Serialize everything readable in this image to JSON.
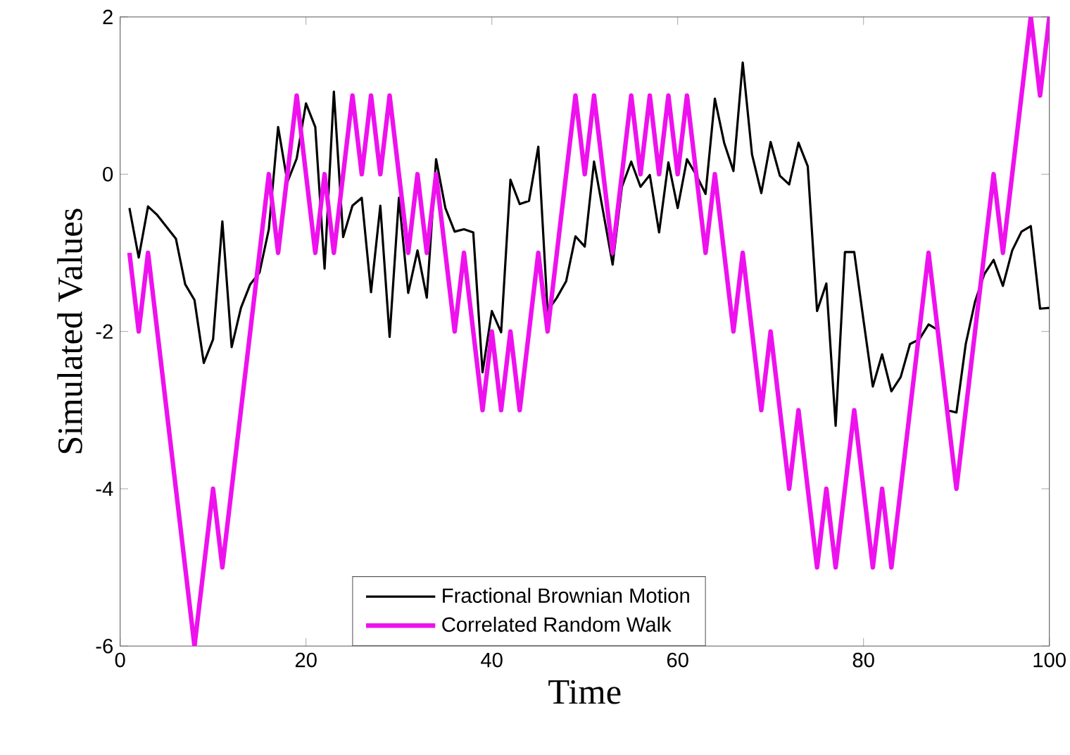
{
  "chart_data": {
    "type": "line",
    "xlabel": "Time",
    "ylabel": "Simulated Values",
    "x": [
      1,
      2,
      3,
      4,
      5,
      6,
      7,
      8,
      9,
      10,
      11,
      12,
      13,
      14,
      15,
      16,
      17,
      18,
      19,
      20,
      21,
      22,
      23,
      24,
      25,
      26,
      27,
      28,
      29,
      30,
      31,
      32,
      33,
      34,
      35,
      36,
      37,
      38,
      39,
      40,
      41,
      42,
      43,
      44,
      45,
      46,
      47,
      48,
      49,
      50,
      51,
      52,
      53,
      54,
      55,
      56,
      57,
      58,
      59,
      60,
      61,
      62,
      63,
      64,
      65,
      66,
      67,
      68,
      69,
      70,
      71,
      72,
      73,
      74,
      75,
      76,
      77,
      78,
      79,
      80,
      81,
      82,
      83,
      84,
      85,
      86,
      87,
      88,
      89,
      90,
      91,
      92,
      93,
      94,
      95,
      96,
      97,
      98,
      99,
      100
    ],
    "series": [
      {
        "name": "Fractional Brownian Motion",
        "color": "#000000",
        "values": [
          -0.43,
          -1.06,
          -0.41,
          -0.52,
          -0.67,
          -0.82,
          -1.4,
          -1.6,
          -2.4,
          -2.1,
          -0.6,
          -2.2,
          -1.7,
          -1.4,
          -1.25,
          -0.7,
          0.6,
          -0.1,
          0.2,
          0.9,
          0.6,
          -1.2,
          1.05,
          -0.8,
          -0.4,
          -0.3,
          -1.5,
          -0.4,
          -2.07,
          -0.3,
          -1.51,
          -0.97,
          -1.57,
          0.19,
          -0.43,
          -0.73,
          -0.7,
          -0.74,
          -2.52,
          -1.74,
          -2.01,
          -0.07,
          -0.38,
          -0.34,
          0.35,
          -1.74,
          -1.57,
          -1.36,
          -0.79,
          -0.92,
          0.16,
          -0.49,
          -1.15,
          -0.16,
          0.16,
          -0.16,
          -0.01,
          -0.74,
          0.15,
          -0.43,
          0.19,
          -0.01,
          -0.25,
          0.96,
          0.4,
          0.04,
          1.42,
          0.25,
          -0.24,
          0.41,
          -0.02,
          -0.13,
          0.4,
          0.1,
          -1.74,
          -1.39,
          -3.2,
          -0.99,
          -0.99,
          -1.86,
          -2.7,
          -2.29,
          -2.76,
          -2.58,
          -2.16,
          -2.1,
          -1.91,
          -1.98,
          -3.0,
          -3.03,
          -2.16,
          -1.62,
          -1.27,
          -1.09,
          -1.42,
          -0.97,
          -0.73,
          -0.66,
          -1.71,
          -1.7
        ]
      },
      {
        "name": "Correlated Random Walk",
        "color": "#ee11ee",
        "values": [
          -1,
          -2,
          -1,
          -2,
          -3,
          -4,
          -5,
          -6,
          -5,
          -4,
          -5,
          -4,
          -3,
          -2,
          -1,
          0,
          -1,
          0,
          1,
          0,
          -1,
          0,
          -1,
          0,
          1,
          0,
          1,
          0,
          1,
          0,
          -1,
          0,
          -1,
          0,
          -1,
          -2,
          -1,
          -2,
          -3,
          -2,
          -3,
          -2,
          -3,
          -2,
          -1,
          -2,
          -1,
          0,
          1,
          0,
          1,
          0,
          -1,
          0,
          1,
          0,
          1,
          0,
          1,
          0,
          1,
          0,
          -1,
          0,
          -1,
          -2,
          -1,
          -2,
          -3,
          -2,
          -3,
          -4,
          -3,
          -4,
          -5,
          -4,
          -5,
          -4,
          -3,
          -4,
          -5,
          -4,
          -5,
          -4,
          -3,
          -2,
          -1,
          -2,
          -3,
          -4,
          -3,
          -2,
          -1,
          0,
          -1,
          0,
          1,
          2,
          1,
          2
        ]
      }
    ],
    "xlim": [
      0,
      100
    ],
    "ylim": [
      -6,
      2
    ],
    "xticks": [
      0,
      20,
      40,
      60,
      80,
      100
    ],
    "yticks": [
      -6,
      -4,
      -2,
      0,
      2
    ],
    "grid": false,
    "legend": "bottom",
    "marker": "none",
    "line_style": "solid"
  }
}
